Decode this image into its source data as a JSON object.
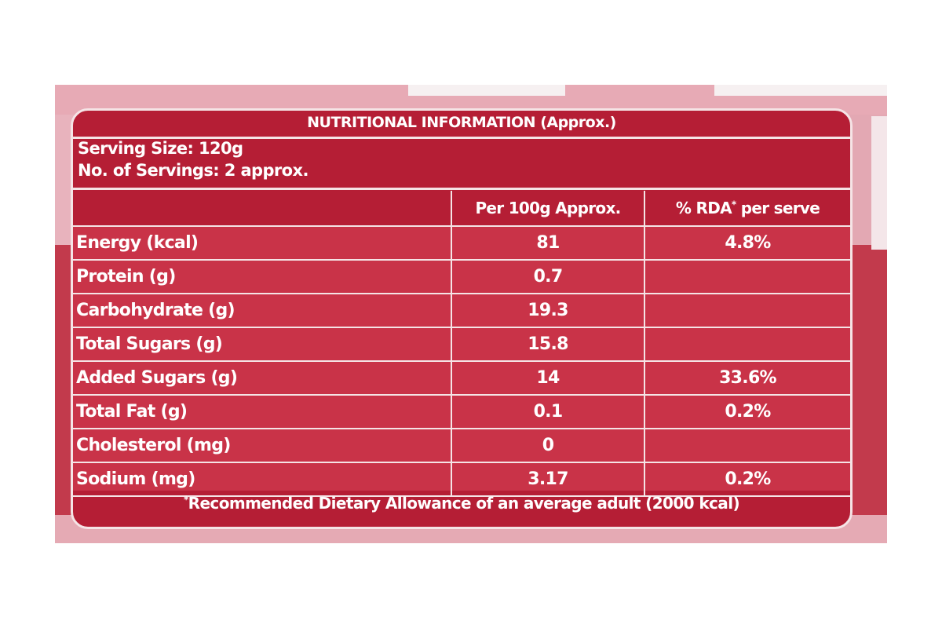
{
  "label": {
    "title": "NUTRITIONAL INFORMATION (Approx.)",
    "serving_size": "Serving Size: 120g",
    "servings": "No. of Servings: 2 approx.",
    "columns": [
      "",
      "Per 100g Approx.",
      "% RDA",
      "per serve"
    ],
    "rows": [
      {
        "nutrient": "Energy (kcal)",
        "per100g": "81",
        "rda": "4.8%"
      },
      {
        "nutrient": "Protein (g)",
        "per100g": "0.7",
        "rda": ""
      },
      {
        "nutrient": "Carbohydrate (g)",
        "per100g": "19.3",
        "rda": ""
      },
      {
        "nutrient": "Total Sugars (g)",
        "per100g": "15.8",
        "rda": ""
      },
      {
        "nutrient": "Added Sugars (g)",
        "per100g": "14",
        "rda": "33.6%"
      },
      {
        "nutrient": "Total Fat (g)",
        "per100g": "0.1",
        "rda": "0.2%"
      },
      {
        "nutrient": "Cholesterol (mg)",
        "per100g": "0",
        "rda": ""
      },
      {
        "nutrient": "Sodium (mg)",
        "per100g": "3.17",
        "rda": "0.2%"
      }
    ],
    "footnote": "Recommended Dietary Allowance of an average adult (2000 kcal)",
    "footnote_marker": "*"
  },
  "colors": {
    "label_red": "#b51e35",
    "cell_red": "#c93348",
    "border": "#f5e4e6"
  }
}
